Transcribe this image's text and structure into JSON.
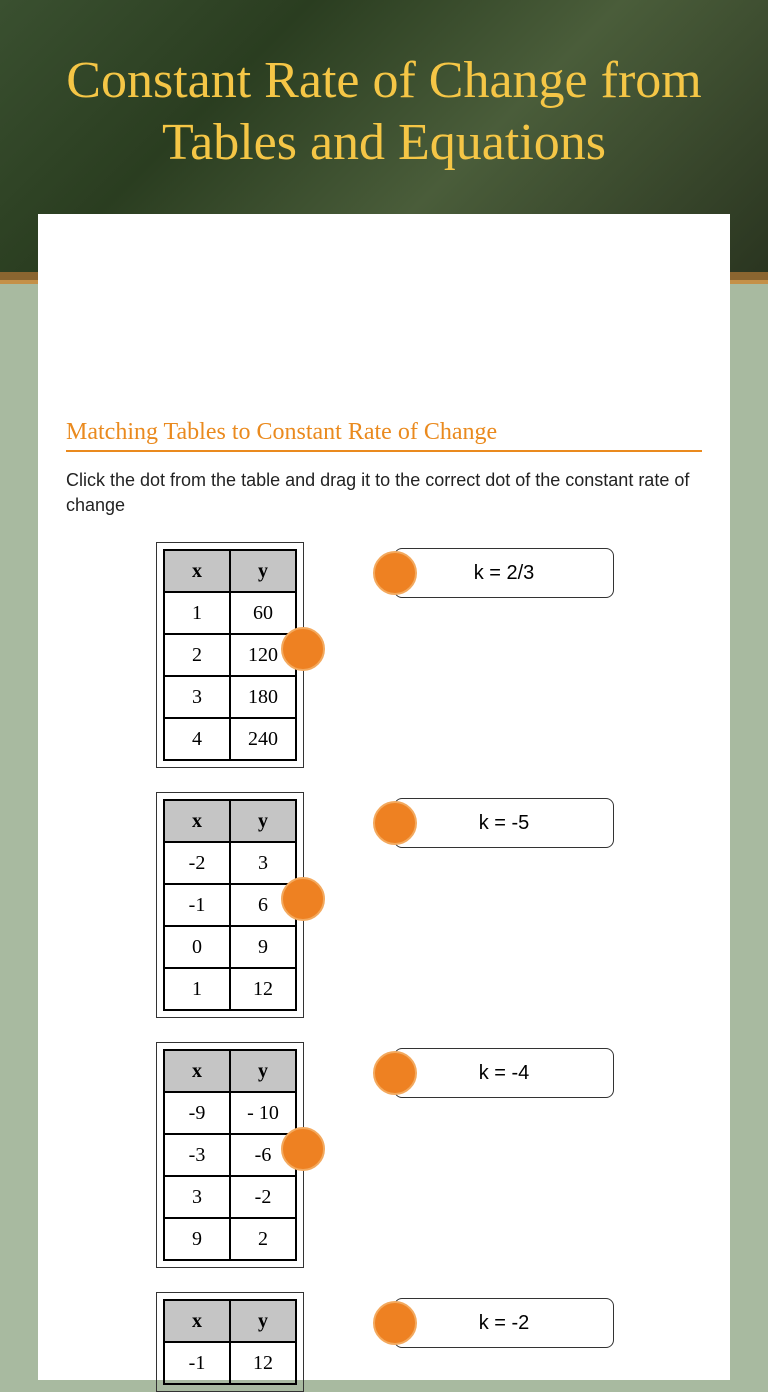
{
  "title": "Constant Rate of Change from Tables and Equations",
  "section_title": "Matching Tables to Constant Rate of Change",
  "instructions": "Click the dot from the table and drag it to the correct dot of the constant rate of change",
  "dot_color": "#ee8122",
  "tables": [
    {
      "headers": [
        "x",
        "y"
      ],
      "rows": [
        [
          "1",
          "60"
        ],
        [
          "2",
          "120"
        ],
        [
          "3",
          "180"
        ],
        [
          "4",
          "240"
        ]
      ]
    },
    {
      "headers": [
        "x",
        "y"
      ],
      "rows": [
        [
          "-2",
          "3"
        ],
        [
          "-1",
          "6"
        ],
        [
          "0",
          "9"
        ],
        [
          "1",
          "12"
        ]
      ]
    },
    {
      "headers": [
        "x",
        "y"
      ],
      "rows": [
        [
          "-9",
          "- 10"
        ],
        [
          "-3",
          "-6"
        ],
        [
          "3",
          "-2"
        ],
        [
          "9",
          "2"
        ]
      ]
    },
    {
      "headers": [
        "x",
        "y"
      ],
      "rows": [
        [
          "-1",
          "12"
        ]
      ]
    }
  ],
  "answers": [
    {
      "label": "k = 2/3"
    },
    {
      "label": "k = -5"
    },
    {
      "label": "k = -4"
    },
    {
      "label": "k = -2"
    }
  ]
}
